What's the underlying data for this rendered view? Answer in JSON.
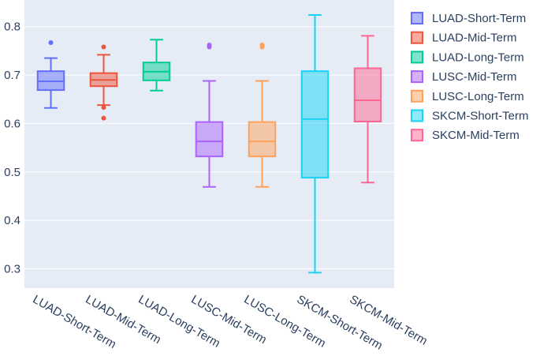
{
  "chart_data": {
    "type": "box",
    "title": "",
    "xlabel": "",
    "ylabel": "",
    "ylim": [
      0.26,
      0.855
    ],
    "yticks": [
      0.3,
      0.4,
      0.5,
      0.6,
      0.7,
      0.8
    ],
    "ytick_labels": [
      "0.3",
      "0.4",
      "0.5",
      "0.6",
      "0.7",
      "0.8"
    ],
    "legend_position": "right",
    "categories": [
      "LUAD-Short-Term",
      "LUAD-Mid-Term",
      "LUAD-Long-Term",
      "LUSC-Mid-Term",
      "LUSC-Long-Term",
      "SKCM-Short-Term",
      "SKCM-Mid-Term"
    ],
    "series": [
      {
        "name": "LUAD-Short-Term",
        "color": "#636efa",
        "min": 0.632,
        "q1": 0.669,
        "median": 0.687,
        "q3": 0.708,
        "max": 0.735,
        "outliers": [
          0.767
        ]
      },
      {
        "name": "LUAD-Mid-Term",
        "color": "#ef553b",
        "min": 0.638,
        "q1": 0.677,
        "median": 0.69,
        "q3": 0.704,
        "max": 0.742,
        "outliers": [
          0.758,
          0.633,
          0.611
        ]
      },
      {
        "name": "LUAD-Long-Term",
        "color": "#00cc96",
        "min": 0.668,
        "q1": 0.689,
        "median": 0.707,
        "q3": 0.726,
        "max": 0.773,
        "outliers": []
      },
      {
        "name": "LUSC-Mid-Term",
        "color": "#ab63fa",
        "min": 0.469,
        "q1": 0.532,
        "median": 0.563,
        "q3": 0.603,
        "max": 0.688,
        "outliers": [
          0.762,
          0.758
        ]
      },
      {
        "name": "LUSC-Long-Term",
        "color": "#ffa15a",
        "min": 0.469,
        "q1": 0.532,
        "median": 0.563,
        "q3": 0.603,
        "max": 0.688,
        "outliers": [
          0.762,
          0.758
        ]
      },
      {
        "name": "SKCM-Short-Term",
        "color": "#19d3f3",
        "min": 0.292,
        "q1": 0.488,
        "median": 0.609,
        "q3": 0.708,
        "max": 0.824,
        "outliers": []
      },
      {
        "name": "SKCM-Mid-Term",
        "color": "#ff6692",
        "min": 0.478,
        "q1": 0.604,
        "median": 0.648,
        "q3": 0.714,
        "max": 0.781,
        "outliers": []
      }
    ]
  }
}
